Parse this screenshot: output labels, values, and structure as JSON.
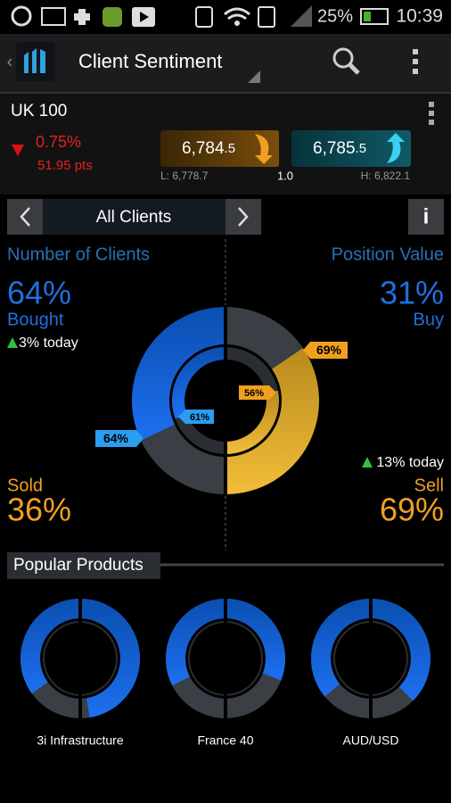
{
  "status_bar": {
    "battery": "25%",
    "time": "10:39"
  },
  "header": {
    "title": "Client Sentiment"
  },
  "instrument": {
    "name": "UK 100",
    "change_pct": "0.75%",
    "change_pts": "51.95 pts",
    "sell": {
      "big": "6,784",
      "small": ".5"
    },
    "buy": {
      "big": "6,785",
      "small": ".5"
    },
    "low": "L: 6,778.7",
    "spread": "1.0",
    "high": "H: 6,822.1"
  },
  "filter": {
    "label": "All Clients"
  },
  "sentiment": {
    "left_title": "Number of Clients",
    "right_title": "Position Value",
    "bought": {
      "value": 64,
      "label": "64%"
    },
    "bought_text": "Bought",
    "bought_today": "3% today",
    "sold": {
      "value": 36,
      "label": "36%"
    },
    "sold_text": "Sold",
    "buy": {
      "value": 31,
      "label": "31%"
    },
    "buy_text": "Buy",
    "sell": {
      "value": 69,
      "label": "69%"
    },
    "sell_text": "Sell",
    "sell_today": "13% today",
    "clients_inner": {
      "value": 61,
      "label": "61%"
    },
    "position_inner": {
      "value": 56,
      "label": "56%"
    }
  },
  "popular": {
    "title": "Popular Products",
    "products": [
      {
        "name": "3i Infrastructure",
        "clients": 70,
        "position": 95
      },
      {
        "name": "France 40",
        "clients": 65,
        "position": 62
      },
      {
        "name": "AUD/USD",
        "clients": 72,
        "position": 75
      }
    ]
  }
}
